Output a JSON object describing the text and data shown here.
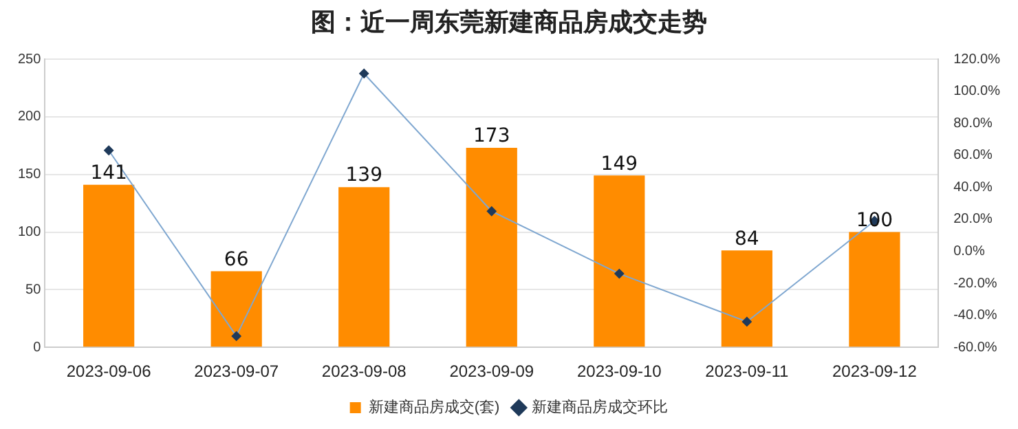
{
  "chart_data": {
    "type": "bar",
    "title": "图：近一周东莞新建商品房成交走势",
    "categories": [
      "2023-09-06",
      "2023-09-07",
      "2023-09-08",
      "2023-09-09",
      "2023-09-10",
      "2023-09-11",
      "2023-09-12"
    ],
    "series": [
      {
        "name": "新建商品房成交(套)",
        "color": "#ff8c00",
        "values": [
          141,
          66,
          139,
          173,
          149,
          84,
          100
        ],
        "value_labels": [
          "141",
          "66",
          "139",
          "173",
          "149",
          "84",
          "100"
        ]
      },
      {
        "name": "新建商品房成交环比",
        "type": "line",
        "axis": "y2",
        "color": "#7fa7d0",
        "marker": "diamond",
        "values": [
          63,
          -53,
          111,
          25,
          -14,
          -44,
          19
        ]
      }
    ],
    "ylim": [
      0,
      250
    ],
    "yticks": [
      0,
      50,
      100,
      150,
      200,
      250
    ],
    "y2lim": [
      -60,
      120
    ],
    "y2ticks": [
      {
        "value": -60,
        "label": "-60.0%"
      },
      {
        "value": -40,
        "label": "-40.0%"
      },
      {
        "value": -20,
        "label": "-20.0%"
      },
      {
        "value": 0,
        "label": "0.0%"
      },
      {
        "value": 20,
        "label": "20.0%"
      },
      {
        "value": 40,
        "label": "40.0%"
      },
      {
        "value": 60,
        "label": "60.0%"
      },
      {
        "value": 80,
        "label": "80.0%"
      },
      {
        "value": 100,
        "label": "100.0%"
      },
      {
        "value": 120,
        "label": "120.0%"
      }
    ],
    "grid": "y",
    "legend": "bottom"
  }
}
